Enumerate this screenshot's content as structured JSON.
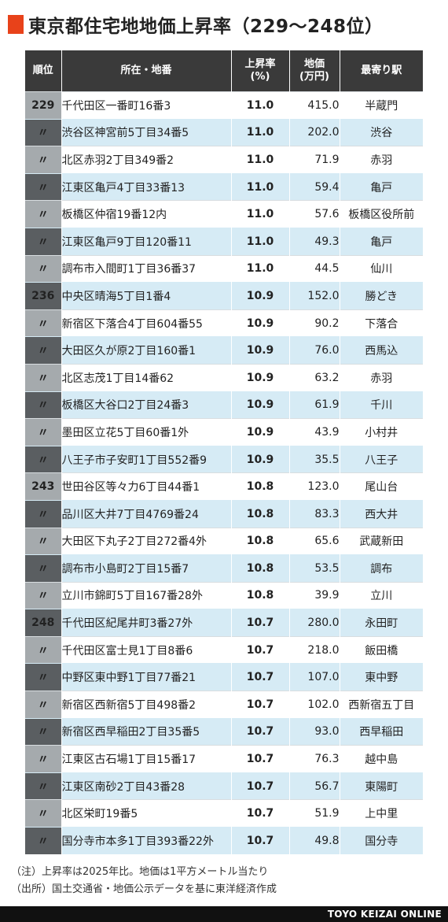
{
  "title": "東京都住宅地地価上昇率（229〜248位）",
  "accent_color": "#e8421a",
  "headers": {
    "rank": "順位",
    "location": "所在・地番",
    "rate_line1": "上昇率",
    "rate_line2": "(%)",
    "price_line1": "地価",
    "price_line2": "(万円)",
    "station": "最寄り駅"
  },
  "rows": [
    {
      "rank": "229",
      "location": "千代田区一番町16番3",
      "rate": "11.0",
      "price": "415.0",
      "station": "半蔵門"
    },
    {
      "rank": "〃",
      "location": "渋谷区神宮前5丁目34番5",
      "rate": "11.0",
      "price": "202.0",
      "station": "渋谷"
    },
    {
      "rank": "〃",
      "location": "北区赤羽2丁目349番2",
      "rate": "11.0",
      "price": "71.9",
      "station": "赤羽"
    },
    {
      "rank": "〃",
      "location": "江東区亀戸4丁目33番13",
      "rate": "11.0",
      "price": "59.4",
      "station": "亀戸"
    },
    {
      "rank": "〃",
      "location": "板橋区仲宿19番12内",
      "rate": "11.0",
      "price": "57.6",
      "station": "板橋区役所前"
    },
    {
      "rank": "〃",
      "location": "江東区亀戸9丁目120番11",
      "rate": "11.0",
      "price": "49.3",
      "station": "亀戸"
    },
    {
      "rank": "〃",
      "location": "調布市入間町1丁目36番37",
      "rate": "11.0",
      "price": "44.5",
      "station": "仙川"
    },
    {
      "rank": "236",
      "location": "中央区晴海5丁目1番4",
      "rate": "10.9",
      "price": "152.0",
      "station": "勝どき"
    },
    {
      "rank": "〃",
      "location": "新宿区下落合4丁目604番55",
      "rate": "10.9",
      "price": "90.2",
      "station": "下落合"
    },
    {
      "rank": "〃",
      "location": "大田区久が原2丁目160番1",
      "rate": "10.9",
      "price": "76.0",
      "station": "西馬込"
    },
    {
      "rank": "〃",
      "location": "北区志茂1丁目14番62",
      "rate": "10.9",
      "price": "63.2",
      "station": "赤羽"
    },
    {
      "rank": "〃",
      "location": "板橋区大谷口2丁目24番3",
      "rate": "10.9",
      "price": "61.9",
      "station": "千川"
    },
    {
      "rank": "〃",
      "location": "墨田区立花5丁目60番1外",
      "rate": "10.9",
      "price": "43.9",
      "station": "小村井"
    },
    {
      "rank": "〃",
      "location": "八王子市子安町1丁目552番9",
      "rate": "10.9",
      "price": "35.5",
      "station": "八王子"
    },
    {
      "rank": "243",
      "location": "世田谷区等々力6丁目44番1",
      "rate": "10.8",
      "price": "123.0",
      "station": "尾山台"
    },
    {
      "rank": "〃",
      "location": "品川区大井7丁目4769番24",
      "rate": "10.8",
      "price": "83.3",
      "station": "西大井"
    },
    {
      "rank": "〃",
      "location": "大田区下丸子2丁目272番4外",
      "rate": "10.8",
      "price": "65.6",
      "station": "武蔵新田"
    },
    {
      "rank": "〃",
      "location": "調布市小島町2丁目15番7",
      "rate": "10.8",
      "price": "53.5",
      "station": "調布"
    },
    {
      "rank": "〃",
      "location": "立川市錦町5丁目167番28外",
      "rate": "10.8",
      "price": "39.9",
      "station": "立川"
    },
    {
      "rank": "248",
      "location": "千代田区紀尾井町3番27外",
      "rate": "10.7",
      "price": "280.0",
      "station": "永田町"
    },
    {
      "rank": "〃",
      "location": "千代田区富士見1丁目8番6",
      "rate": "10.7",
      "price": "218.0",
      "station": "飯田橋"
    },
    {
      "rank": "〃",
      "location": "中野区東中野1丁目77番21",
      "rate": "10.7",
      "price": "107.0",
      "station": "東中野"
    },
    {
      "rank": "〃",
      "location": "新宿区西新宿5丁目498番2",
      "rate": "10.7",
      "price": "102.0",
      "station": "西新宿五丁目"
    },
    {
      "rank": "〃",
      "location": "新宿区西早稲田2丁目35番5",
      "rate": "10.7",
      "price": "93.0",
      "station": "西早稲田"
    },
    {
      "rank": "〃",
      "location": "江東区古石場1丁目15番17",
      "rate": "10.7",
      "price": "76.3",
      "station": "越中島"
    },
    {
      "rank": "〃",
      "location": "江東区南砂2丁目43番28",
      "rate": "10.7",
      "price": "56.7",
      "station": "東陽町"
    },
    {
      "rank": "〃",
      "location": "北区栄町19番5",
      "rate": "10.7",
      "price": "51.9",
      "station": "上中里"
    },
    {
      "rank": "〃",
      "location": "国分寺市本多1丁目393番22外",
      "rate": "10.7",
      "price": "49.8",
      "station": "国分寺"
    }
  ],
  "notes": {
    "note1": "（注）上昇率は2025年比。地価は1平方メートル当たり",
    "note2": "（出所）国土交通省・地価公示データを基に東洋経済作成"
  },
  "footer": "TOYO KEIZAI ONLINE"
}
